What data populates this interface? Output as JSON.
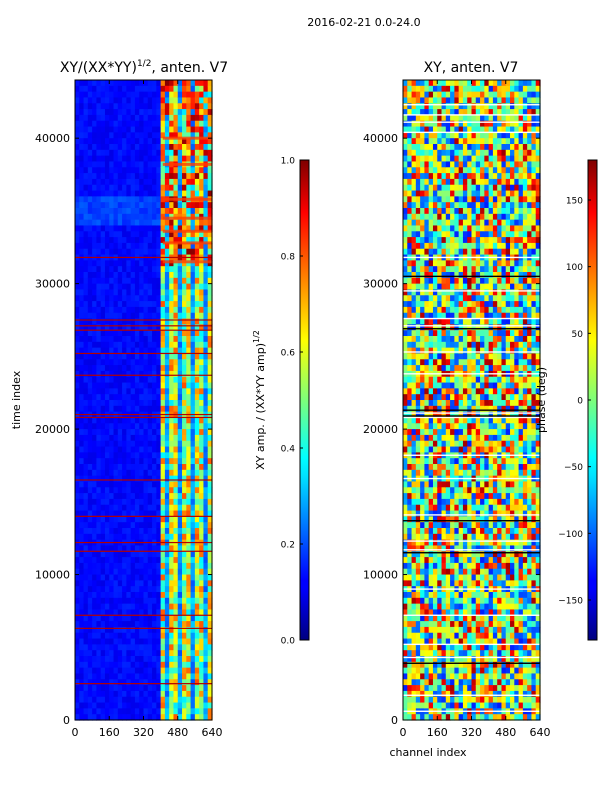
{
  "figure": {
    "suptitle": "2016-02-21 0.0-24.0"
  },
  "chart_data": [
    {
      "type": "heatmap",
      "title": "XY/(XX*YY)",
      "title_exponent": "1/2",
      "title_suffix": ", anten. V7",
      "xlabel": "",
      "ylabel": "time index",
      "xlim": [
        0,
        640
      ],
      "ylim": [
        0,
        44000
      ],
      "xticks": [
        0,
        160,
        320,
        480,
        640
      ],
      "yticks": [
        0,
        10000,
        20000,
        30000,
        40000
      ],
      "xtick_labels": [
        "0",
        "160",
        "320",
        "480",
        "640"
      ],
      "ytick_labels": [
        "0",
        "10000",
        "20000",
        "30000",
        "40000"
      ],
      "colorbar": {
        "label": "XY amp. / (XX*YY amp)",
        "label_exponent": "1/2",
        "range": [
          0.0,
          1.0
        ],
        "ticks": [
          0.0,
          0.2,
          0.4,
          0.6,
          0.8,
          1.0
        ],
        "tick_labels": [
          "0.0",
          "0.2",
          "0.4",
          "0.6",
          "0.8",
          "1.0"
        ],
        "colormap": "jet"
      },
      "regions": [
        {
          "x": [
            0,
            410
          ],
          "level": 0.12,
          "desc": "low amplitude region"
        },
        {
          "x": [
            410,
            640
          ],
          "level": 0.45,
          "desc": "high-variation region"
        }
      ],
      "high_bands_y": [
        2500,
        6300,
        7200,
        11600,
        12200,
        14000,
        16500,
        20800,
        21000,
        23700,
        25200,
        26800,
        27100,
        27500,
        31800
      ],
      "bright_rows_y": [
        31500,
        32800,
        33600,
        34500,
        35800,
        38200,
        40000
      ]
    },
    {
      "type": "heatmap",
      "title": "XY, anten. V7",
      "xlabel": "channel index",
      "ylabel": "",
      "xlim": [
        0,
        640
      ],
      "ylim": [
        0,
        44000
      ],
      "xticks": [
        0,
        160,
        320,
        480,
        640
      ],
      "yticks": [
        0,
        10000,
        20000,
        30000,
        40000
      ],
      "xtick_labels": [
        "0",
        "160",
        "320",
        "480",
        "640"
      ],
      "ytick_labels": [
        "0",
        "10000",
        "20000",
        "30000",
        "40000"
      ],
      "colorbar": {
        "label": "phase (deg)",
        "range": [
          -180,
          180
        ],
        "ticks": [
          -150,
          -100,
          -50,
          0,
          50,
          100,
          150
        ],
        "tick_labels": [
          "−150",
          "−100",
          "−50",
          "0",
          "50",
          "100",
          "150"
        ],
        "colormap": "jet"
      },
      "white_lines_y": [
        600,
        1700,
        4300,
        5200,
        7200,
        9000,
        11700,
        12300,
        14100,
        16600,
        18200,
        20800,
        21100,
        23800,
        25300,
        27100,
        27600,
        29500,
        31800,
        40400,
        41100,
        41600,
        42300
      ],
      "black_lines_y": [
        3900,
        11500,
        13700,
        20900,
        21300,
        26900,
        30500
      ]
    }
  ]
}
